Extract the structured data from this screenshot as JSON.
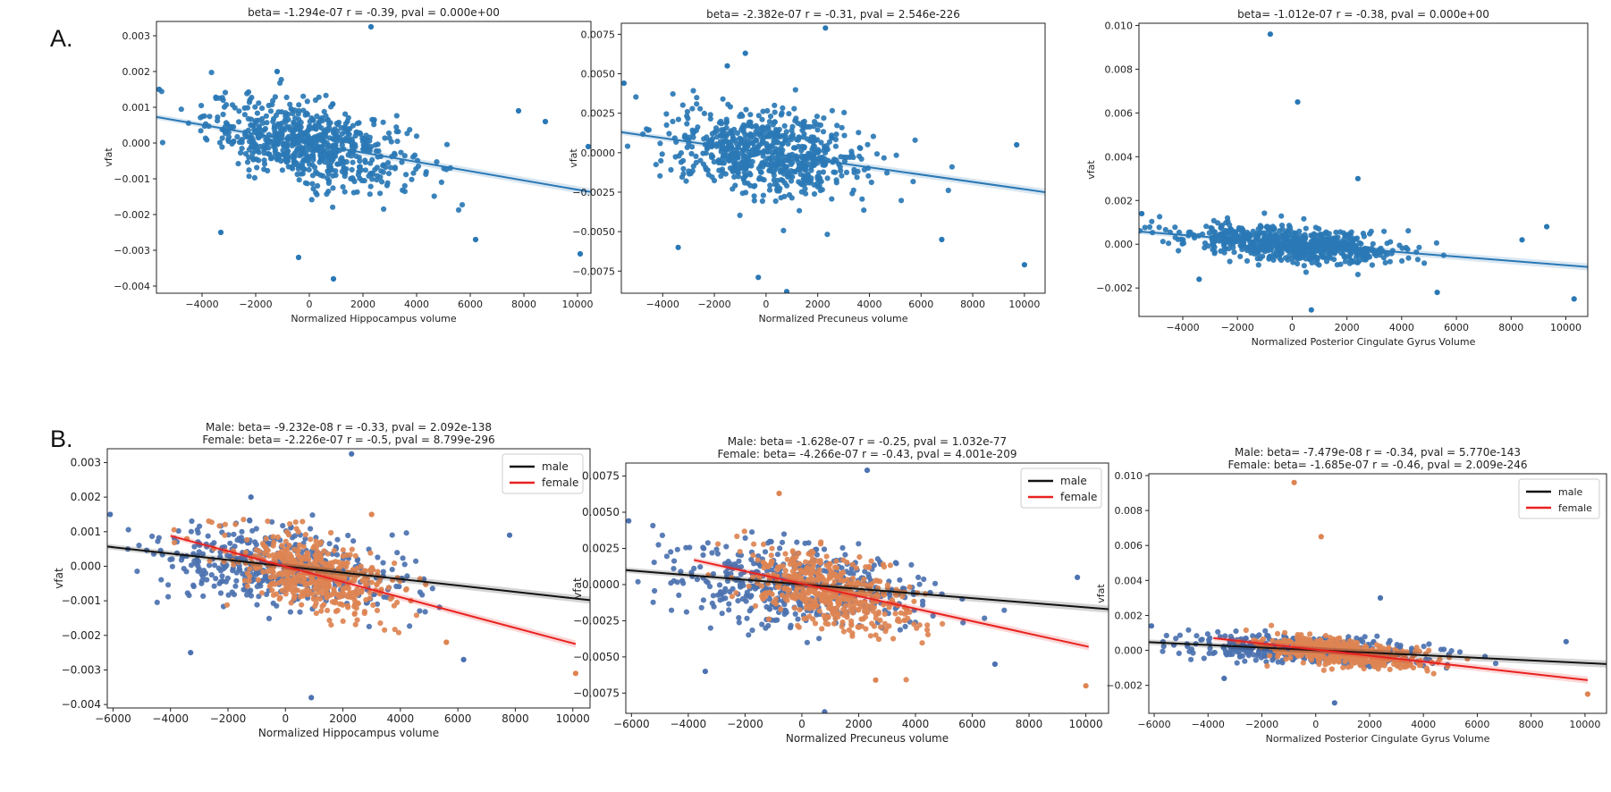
{
  "page": {
    "caption_fragment": "",
    "panel_labels": [
      "A.",
      "B."
    ]
  },
  "colors": {
    "scatter_all": "#2a78b5",
    "male_points": "#4c72b0",
    "female_points": "#dd8452",
    "male_line": "#111111",
    "female_line": "#e8221f",
    "axes": "#222222"
  },
  "chart_data": [
    {
      "panel": "A",
      "type": "scatter",
      "title": "beta= -1.294e-07 r = -0.39, pval = 0.000e+00",
      "xlabel": "Normalized Hippocampus volume",
      "ylabel": "vfat",
      "xlim": [
        -5700,
        10500
      ],
      "ylim": [
        -0.0042,
        0.0034
      ],
      "xticks": [
        -4000,
        -2000,
        0,
        2000,
        4000,
        6000,
        8000,
        10000
      ],
      "xtick_labels": [
        "−4000",
        "−2000",
        "0",
        "2000",
        "4000",
        "6000",
        "8000",
        "10000"
      ],
      "yticks": [
        0.003,
        0.002,
        0.001,
        0.0,
        -0.001,
        -0.002,
        -0.003,
        -0.004
      ],
      "ytick_labels": [
        "0.003",
        "0.002",
        "0.001",
        "0.000",
        "−0.001",
        "−0.002",
        "−0.003",
        "−0.004"
      ],
      "cloud": {
        "cx": 0,
        "cy": 0.0,
        "sx": 1900,
        "sy": 0.00055,
        "n": 700,
        "slope": -1.294e-07
      },
      "outliers": [
        [
          2300,
          0.00325
        ],
        [
          -1200,
          0.002
        ],
        [
          900,
          -0.0038
        ],
        [
          10100,
          -0.0031
        ],
        [
          7800,
          0.0009
        ],
        [
          -5600,
          0.0015
        ],
        [
          -3300,
          -0.0025
        ],
        [
          -400,
          -0.0032
        ],
        [
          6200,
          -0.0027
        ],
        [
          8800,
          0.0006
        ],
        [
          10400,
          -0.0001
        ]
      ],
      "fit_lines": [
        {
          "series": "all",
          "x": [
            -5700,
            10500
          ],
          "y": [
            0.00073,
            -0.00137
          ]
        }
      ],
      "legend": null
    },
    {
      "panel": "A",
      "type": "scatter",
      "title": "beta= -2.382e-07 r = -0.31, pval = 2.546e-226",
      "xlabel": "Normalized Precuneus volume",
      "ylabel": "vfat",
      "xlim": [
        -5600,
        10800
      ],
      "ylim": [
        -0.0089,
        0.0082
      ],
      "xticks": [
        -4000,
        -2000,
        0,
        2000,
        4000,
        6000,
        8000,
        10000
      ],
      "xtick_labels": [
        "−4000",
        "−2000",
        "0",
        "2000",
        "4000",
        "6000",
        "8000",
        "10000"
      ],
      "yticks": [
        0.0075,
        0.005,
        0.0025,
        0.0,
        -0.0025,
        -0.005,
        -0.0075
      ],
      "ytick_labels": [
        "0.0075",
        "0.0050",
        "0.0025",
        "0.0000",
        "−0.0025",
        "−0.0050",
        "−0.0075"
      ],
      "cloud": {
        "cx": 0,
        "cy": 0.0,
        "sx": 1900,
        "sy": 0.0013,
        "n": 700,
        "slope": -2.382e-07
      },
      "outliers": [
        [
          2300,
          0.0079
        ],
        [
          -800,
          0.0063
        ],
        [
          800,
          -0.0088
        ],
        [
          -300,
          -0.0079
        ],
        [
          10000,
          -0.0071
        ],
        [
          -5500,
          0.0044
        ],
        [
          -3400,
          -0.006
        ],
        [
          9700,
          0.0005
        ],
        [
          6800,
          -0.0055
        ],
        [
          -1500,
          0.0055
        ]
      ],
      "fit_lines": [
        {
          "series": "all",
          "x": [
            -5600,
            10800
          ],
          "y": [
            0.0013,
            -0.0025
          ]
        }
      ],
      "legend": null
    },
    {
      "panel": "A",
      "type": "scatter",
      "title": "beta= -1.012e-07 r = -0.38, pval = 0.000e+00",
      "xlabel": "Normalized Posterior Cingulate Gyrus Volume",
      "ylabel": "vfat",
      "xlim": [
        -5600,
        10800
      ],
      "ylim": [
        -0.0033,
        0.0101
      ],
      "xticks": [
        -4000,
        -2000,
        0,
        2000,
        4000,
        6000,
        8000,
        10000
      ],
      "xtick_labels": [
        "−4000",
        "−2000",
        "0",
        "2000",
        "4000",
        "6000",
        "8000",
        "10000"
      ],
      "yticks": [
        0.01,
        0.008,
        0.006,
        0.004,
        0.002,
        0.0,
        -0.002
      ],
      "ytick_labels": [
        "0.010",
        "0.008",
        "0.006",
        "0.004",
        "0.002",
        "0.000",
        "−0.002"
      ],
      "cloud": {
        "cx": 0,
        "cy": 0.0,
        "sx": 1900,
        "sy": 0.00038,
        "n": 700,
        "slope": -1.012e-07
      },
      "outliers": [
        [
          -800,
          0.0096
        ],
        [
          200,
          0.0065
        ],
        [
          2400,
          0.003
        ],
        [
          -5500,
          0.0014
        ],
        [
          10300,
          -0.0025
        ],
        [
          8400,
          0.0002
        ],
        [
          -3400,
          -0.0016
        ],
        [
          700,
          -0.003
        ],
        [
          9300,
          0.0008
        ],
        [
          5300,
          -0.0022
        ]
      ],
      "fit_lines": [
        {
          "series": "all",
          "x": [
            -5600,
            10800
          ],
          "y": [
            0.00058,
            -0.00104
          ]
        }
      ],
      "legend": null
    },
    {
      "panel": "B",
      "type": "scatter",
      "title": "Male: beta= -9.232e-08 r = -0.33, pval = 2.092e-138",
      "subtitle": "Female: beta= -2.226e-07 r = -0.5, pval = 8.799e-296",
      "xlabel": "Normalized Hippocampus volume",
      "ylabel": "vfat",
      "xlim": [
        -6200,
        10600
      ],
      "ylim": [
        -0.0041,
        0.0034
      ],
      "xticks": [
        -6000,
        -4000,
        -2000,
        0,
        2000,
        4000,
        6000,
        8000,
        10000
      ],
      "xtick_labels": [
        "−6000",
        "−4000",
        "−2000",
        "0",
        "2000",
        "4000",
        "6000",
        "8000",
        "10000"
      ],
      "yticks": [
        0.003,
        0.002,
        0.001,
        0.0,
        -0.001,
        -0.002,
        -0.003,
        -0.004
      ],
      "ytick_labels": [
        "0.003",
        "0.002",
        "0.001",
        "0.000",
        "−0.001",
        "−0.002",
        "−0.003",
        "−0.004"
      ],
      "clouds": [
        {
          "series": "male",
          "cx": -300,
          "cy": 0.0,
          "sx": 2200,
          "sy": 0.0006,
          "n": 480,
          "slope": -9.232e-08
        },
        {
          "series": "female",
          "cx": 900,
          "cy": -0.0002,
          "sx": 1500,
          "sy": 0.0005,
          "n": 480,
          "slope": -2.226e-07
        }
      ],
      "outliers": [
        [
          2300,
          0.00325,
          "male"
        ],
        [
          -1200,
          0.002,
          "male"
        ],
        [
          900,
          -0.0038,
          "male"
        ],
        [
          10100,
          -0.0031,
          "female"
        ],
        [
          7800,
          0.0009,
          "male"
        ],
        [
          -6100,
          0.0015,
          "male"
        ],
        [
          -3300,
          -0.0025,
          "male"
        ],
        [
          6200,
          -0.0027,
          "male"
        ],
        [
          3000,
          0.0015,
          "female"
        ],
        [
          5600,
          -0.0022,
          "female"
        ]
      ],
      "fit_lines": [
        {
          "series": "male",
          "x": [
            -6200,
            10600
          ],
          "y": [
            0.00057,
            -0.00098
          ]
        },
        {
          "series": "female",
          "x": [
            -4000,
            10100
          ],
          "y": [
            0.00088,
            -0.00225
          ]
        }
      ],
      "legend": {
        "position": "top-right",
        "entries": [
          {
            "series": "male",
            "label": "male"
          },
          {
            "series": "female",
            "label": "female"
          }
        ]
      }
    },
    {
      "panel": "B",
      "type": "scatter",
      "title": "Male: beta= -1.628e-07 r = -0.25, pval = 1.032e-77",
      "subtitle": "Female: beta= -4.266e-07 r = -0.43, pval = 4.001e-209",
      "xlabel": "Normalized Precuneus volume",
      "ylabel": "vfat",
      "xlim": [
        -6200,
        10800
      ],
      "ylim": [
        -0.0089,
        0.0084
      ],
      "xticks": [
        -6000,
        -4000,
        -2000,
        0,
        2000,
        4000,
        6000,
        8000,
        10000
      ],
      "xtick_labels": [
        "−6000",
        "−4000",
        "−2000",
        "0",
        "2000",
        "4000",
        "6000",
        "8000",
        "10000"
      ],
      "yticks": [
        0.0075,
        0.005,
        0.0025,
        0.0,
        -0.0025,
        -0.005,
        -0.0075
      ],
      "ytick_labels": [
        "0.0075",
        "0.0050",
        "0.0025",
        "0.0000",
        "−0.0025",
        "−0.0050",
        "−0.0075"
      ],
      "clouds": [
        {
          "series": "male",
          "cx": -300,
          "cy": 0.0,
          "sx": 2200,
          "sy": 0.0014,
          "n": 480,
          "slope": -1.628e-07
        },
        {
          "series": "female",
          "cx": 900,
          "cy": -0.0004,
          "sx": 1500,
          "sy": 0.0012,
          "n": 480,
          "slope": -4.266e-07
        }
      ],
      "outliers": [
        [
          2300,
          0.0079,
          "male"
        ],
        [
          -800,
          0.0063,
          "female"
        ],
        [
          800,
          -0.0088,
          "male"
        ],
        [
          10000,
          -0.007,
          "female"
        ],
        [
          -6100,
          0.0044,
          "male"
        ],
        [
          -3400,
          -0.006,
          "male"
        ],
        [
          9700,
          0.0005,
          "male"
        ],
        [
          6800,
          -0.0055,
          "male"
        ],
        [
          2600,
          -0.0066,
          "female"
        ]
      ],
      "fit_lines": [
        {
          "series": "male",
          "x": [
            -6200,
            10800
          ],
          "y": [
            0.001,
            -0.0017
          ]
        },
        {
          "series": "female",
          "x": [
            -3800,
            10100
          ],
          "y": [
            0.0017,
            -0.0043
          ]
        }
      ],
      "legend": {
        "position": "top-right",
        "entries": [
          {
            "series": "male",
            "label": "male"
          },
          {
            "series": "female",
            "label": "female"
          }
        ]
      }
    },
    {
      "panel": "B",
      "type": "scatter",
      "title": "Male: beta= -7.479e-08 r = -0.34, pval = 5.770e-143",
      "subtitle": "Female: beta= -1.685e-07 r = -0.46, pval = 2.009e-246",
      "xlabel": "Normalized Posterior Cingulate Gyrus Volume",
      "ylabel": "vfat",
      "xlim": [
        -6200,
        10800
      ],
      "ylim": [
        -0.0036,
        0.0101
      ],
      "xticks": [
        -6000,
        -4000,
        -2000,
        0,
        2000,
        4000,
        6000,
        8000,
        10000
      ],
      "xtick_labels": [
        "−6000",
        "−4000",
        "−2000",
        "0",
        "2000",
        "4000",
        "6000",
        "8000",
        "10000"
      ],
      "yticks": [
        0.01,
        0.008,
        0.006,
        0.004,
        0.002,
        0.0,
        -0.002
      ],
      "ytick_labels": [
        "0.010",
        "0.008",
        "0.006",
        "0.004",
        "0.002",
        "0.000",
        "−0.002"
      ],
      "clouds": [
        {
          "series": "male",
          "cx": -300,
          "cy": 0.0,
          "sx": 2200,
          "sy": 0.0004,
          "n": 480,
          "slope": -7.479e-08
        },
        {
          "series": "female",
          "cx": 900,
          "cy": -0.0001,
          "sx": 1500,
          "sy": 0.00035,
          "n": 480,
          "slope": -1.685e-07
        }
      ],
      "outliers": [
        [
          -800,
          0.0096,
          "female"
        ],
        [
          200,
          0.0065,
          "female"
        ],
        [
          2400,
          0.003,
          "male"
        ],
        [
          -6100,
          0.0014,
          "male"
        ],
        [
          10100,
          -0.0025,
          "female"
        ],
        [
          -3400,
          -0.0016,
          "male"
        ],
        [
          700,
          -0.003,
          "male"
        ],
        [
          9300,
          0.0005,
          "male"
        ]
      ],
      "fit_lines": [
        {
          "series": "male",
          "x": [
            -6200,
            10800
          ],
          "y": [
            0.00047,
            -0.00078
          ]
        },
        {
          "series": "female",
          "x": [
            -3800,
            10100
          ],
          "y": [
            0.0007,
            -0.0017
          ]
        }
      ],
      "legend": {
        "position": "top-right",
        "entries": [
          {
            "series": "male",
            "label": "male"
          },
          {
            "series": "female",
            "label": "female"
          }
        ]
      }
    }
  ]
}
